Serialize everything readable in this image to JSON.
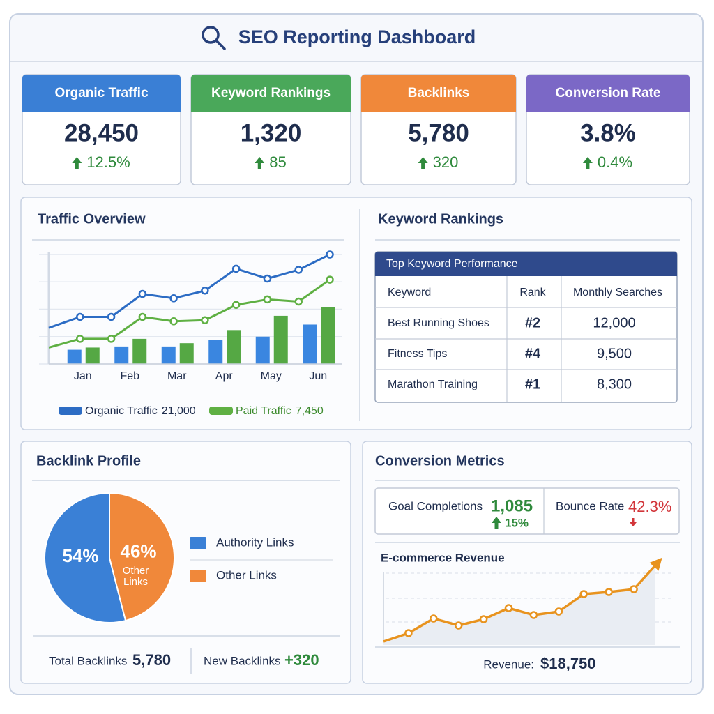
{
  "header": {
    "title": "SEO Reporting Dashboard"
  },
  "kpis": [
    {
      "label": "Organic Traffic",
      "value": "28,450",
      "change": "12.5%",
      "color": "#3a7fd5"
    },
    {
      "label": "Keyword Rankings",
      "value": "1,320",
      "change": "85",
      "color": "#4aa85a"
    },
    {
      "label": "Backlinks",
      "value": "5,780",
      "change": "320",
      "color": "#f0883a"
    },
    {
      "label": "Conversion Rate",
      "value": "3.8%",
      "change": "0.4%",
      "color": "#7b68c6"
    }
  ],
  "traffic_overview": {
    "title": "Traffic Overview",
    "chart": {
      "type": "bar-line",
      "categories": [
        "Jan",
        "Feb",
        "Mar",
        "Apr",
        "May",
        "Jun"
      ],
      "ylim": [
        0,
        100
      ],
      "series": [
        {
          "name": "Organic Traffic",
          "legend_value": "21,000",
          "color": "#2c6cc4",
          "bar_color": "#3a86e0",
          "line_values": [
            33,
            43,
            43,
            64,
            60,
            67,
            87,
            78,
            86,
            100
          ],
          "bar_values": [
            13,
            16,
            16,
            22,
            25,
            36
          ]
        },
        {
          "name": "Paid Traffic",
          "legend_value": "7,450",
          "color": "#5fb043",
          "bar_color": "#55a844",
          "line_values": [
            15,
            23,
            23,
            43,
            39,
            40,
            54,
            59,
            57,
            77
          ],
          "bar_values": [
            15,
            23,
            19,
            31,
            44,
            52
          ]
        }
      ]
    }
  },
  "keyword_rankings": {
    "title": "Keyword Rankings",
    "table": {
      "caption": "Top Keyword Performance",
      "columns": [
        "Keyword",
        "Rank",
        "Monthly Searches"
      ],
      "rows": [
        [
          "Best Running Shoes",
          "#2",
          "12,000"
        ],
        [
          "Fitness Tips",
          "#4",
          "9,500"
        ],
        [
          "Marathon Training",
          "#1",
          "8,300"
        ]
      ]
    }
  },
  "backlink_profile": {
    "title": "Backlink Profile",
    "chart": {
      "type": "pie",
      "slices": [
        {
          "name": "Authority Links",
          "value": 54,
          "value_label": "54%",
          "color": "#3a80d6"
        },
        {
          "name": "Other Links",
          "value": 46,
          "value_label": "46%",
          "color": "#f0883a"
        }
      ]
    },
    "totals": [
      {
        "label": "Total Backlinks",
        "value": "5,780"
      },
      {
        "label": "New Backlinks",
        "value": "+320"
      }
    ]
  },
  "conversion_metrics": {
    "title": "Conversion Metrics",
    "metrics": [
      {
        "label": "Goal Completions",
        "value": "1,085",
        "change": "15%"
      },
      {
        "label": "Bounce Rate",
        "value": "42.3%"
      }
    ],
    "revenue": {
      "title": "E-commerce Revenue",
      "chart": {
        "type": "line",
        "values": [
          5,
          17,
          38,
          28,
          37,
          53,
          43,
          48,
          73,
          76,
          80,
          120
        ],
        "ylim": [
          0,
          130
        ],
        "color": "#e8931e"
      },
      "label": "Revenue:",
      "total": "$18,750"
    }
  }
}
